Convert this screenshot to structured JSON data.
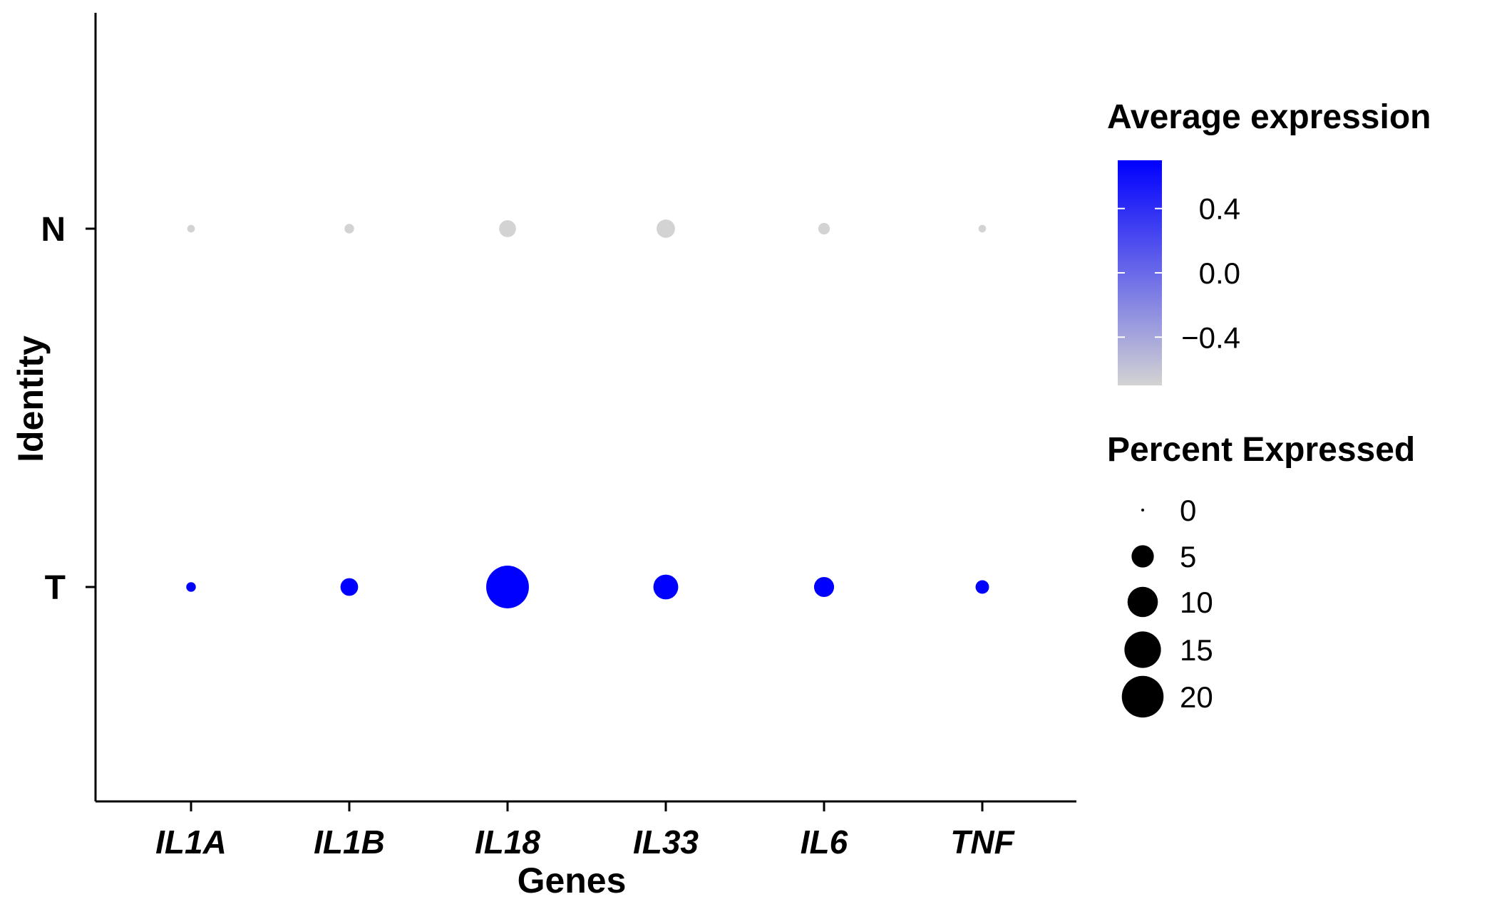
{
  "chart_data": {
    "type": "scatter",
    "subtype": "dot-plot",
    "xlabel": "Genes",
    "ylabel": "Identity",
    "categories_x": [
      "IL1A",
      "IL1B",
      "IL18",
      "IL33",
      "IL6",
      "TNF"
    ],
    "categories_y": [
      "N",
      "T"
    ],
    "points": [
      {
        "gene": "IL1A",
        "identity": "N",
        "avg_expression": -0.7,
        "pct_expressed": 0.3
      },
      {
        "gene": "IL1B",
        "identity": "N",
        "avg_expression": -0.7,
        "pct_expressed": 0.6
      },
      {
        "gene": "IL18",
        "identity": "N",
        "avg_expression": -0.7,
        "pct_expressed": 2.6
      },
      {
        "gene": "IL33",
        "identity": "N",
        "avg_expression": -0.7,
        "pct_expressed": 3.2
      },
      {
        "gene": "IL6",
        "identity": "N",
        "avg_expression": -0.7,
        "pct_expressed": 1.0
      },
      {
        "gene": "TNF",
        "identity": "N",
        "avg_expression": -0.7,
        "pct_expressed": 0.3
      },
      {
        "gene": "IL1A",
        "identity": "T",
        "avg_expression": 0.7,
        "pct_expressed": 0.6
      },
      {
        "gene": "IL1B",
        "identity": "T",
        "avg_expression": 0.7,
        "pct_expressed": 2.9
      },
      {
        "gene": "IL18",
        "identity": "T",
        "avg_expression": 0.7,
        "pct_expressed": 21.0
      },
      {
        "gene": "IL33",
        "identity": "T",
        "avg_expression": 0.7,
        "pct_expressed": 6.4
      },
      {
        "gene": "IL6",
        "identity": "T",
        "avg_expression": 0.7,
        "pct_expressed": 3.9
      },
      {
        "gene": "TNF",
        "identity": "T",
        "avg_expression": 0.7,
        "pct_expressed": 1.5
      }
    ],
    "color_legend": {
      "title": "Average expression",
      "ticks": [
        0.4,
        0.0,
        -0.4
      ],
      "tick_labels": [
        "0.4",
        "0.0",
        "−0.4"
      ],
      "range": [
        -0.7,
        0.7
      ],
      "color_low": "#d3d3d3",
      "color_high": "#0000ff"
    },
    "size_legend": {
      "title": "Percent Expressed",
      "values": [
        0,
        5,
        10,
        15,
        20
      ],
      "labels": [
        "0",
        "5",
        "10",
        "15",
        "20"
      ]
    }
  }
}
